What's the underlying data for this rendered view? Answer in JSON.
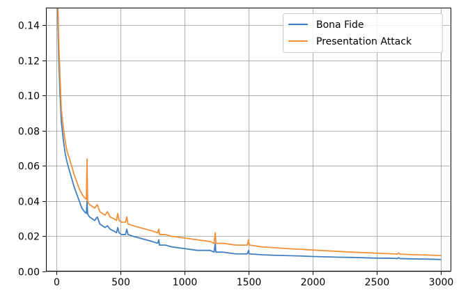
{
  "chart_data": {
    "type": "line",
    "title": "",
    "xlabel": "",
    "ylabel": "",
    "xlim": [
      -80,
      3080
    ],
    "ylim": [
      0.0,
      0.15
    ],
    "grid": true,
    "legend_position": "top-right",
    "x_ticks": [
      0,
      500,
      1000,
      1500,
      2000,
      2500,
      3000
    ],
    "x_tick_labels": [
      "0",
      "500",
      "1000",
      "1500",
      "2000",
      "2500",
      "3000"
    ],
    "y_ticks": [
      0.0,
      0.02,
      0.04,
      0.06,
      0.08,
      0.1,
      0.12,
      0.14
    ],
    "y_tick_labels": [
      "0.00",
      "0.02",
      "0.04",
      "0.06",
      "0.08",
      "0.10",
      "0.12",
      "0.14"
    ],
    "series": [
      {
        "name": "Bona Fide",
        "color": "#3f7fbf",
        "x": [
          0,
          10,
          20,
          30,
          40,
          55,
          70,
          85,
          100,
          120,
          140,
          160,
          180,
          200,
          220,
          235,
          240,
          245,
          250,
          260,
          280,
          300,
          320,
          340,
          360,
          380,
          400,
          420,
          450,
          470,
          480,
          490,
          510,
          540,
          550,
          560,
          600,
          650,
          700,
          750,
          790,
          800,
          805,
          810,
          850,
          900,
          1000,
          1100,
          1200,
          1230,
          1240,
          1245,
          1250,
          1260,
          1300,
          1400,
          1490,
          1500,
          1505,
          1510,
          1600,
          1700,
          1800,
          1900,
          2000,
          2100,
          2200,
          2300,
          2400,
          2500,
          2600,
          2660,
          2670,
          2680,
          2700,
          2800,
          2900,
          3000
        ],
        "y": [
          0.18,
          0.15,
          0.12,
          0.1,
          0.085,
          0.075,
          0.067,
          0.062,
          0.058,
          0.053,
          0.048,
          0.044,
          0.04,
          0.036,
          0.034,
          0.033,
          0.04,
          0.033,
          0.032,
          0.031,
          0.03,
          0.029,
          0.031,
          0.027,
          0.026,
          0.025,
          0.026,
          0.024,
          0.023,
          0.022,
          0.025,
          0.022,
          0.021,
          0.021,
          0.024,
          0.021,
          0.02,
          0.019,
          0.018,
          0.017,
          0.016,
          0.018,
          0.015,
          0.015,
          0.015,
          0.014,
          0.013,
          0.012,
          0.012,
          0.011,
          0.016,
          0.011,
          0.011,
          0.011,
          0.011,
          0.01,
          0.01,
          0.012,
          0.01,
          0.01,
          0.0095,
          0.0092,
          0.009,
          0.0088,
          0.0085,
          0.0083,
          0.0081,
          0.008,
          0.0078,
          0.0076,
          0.0075,
          0.0074,
          0.0078,
          0.0073,
          0.0073,
          0.0071,
          0.007,
          0.0068
        ]
      },
      {
        "name": "Presentation Attack",
        "color": "#f0913a",
        "x": [
          0,
          10,
          20,
          30,
          40,
          55,
          70,
          85,
          100,
          120,
          140,
          160,
          180,
          200,
          220,
          235,
          240,
          245,
          250,
          260,
          280,
          300,
          320,
          340,
          360,
          380,
          400,
          420,
          450,
          470,
          480,
          490,
          510,
          540,
          550,
          560,
          600,
          650,
          700,
          750,
          790,
          800,
          805,
          810,
          850,
          900,
          1000,
          1100,
          1200,
          1230,
          1240,
          1245,
          1250,
          1260,
          1300,
          1400,
          1490,
          1500,
          1505,
          1510,
          1600,
          1700,
          1800,
          1900,
          2000,
          2100,
          2200,
          2300,
          2400,
          2500,
          2600,
          2660,
          2670,
          2680,
          2700,
          2800,
          2900,
          3000
        ],
        "y": [
          0.19,
          0.16,
          0.13,
          0.11,
          0.092,
          0.082,
          0.074,
          0.068,
          0.065,
          0.06,
          0.055,
          0.051,
          0.047,
          0.044,
          0.042,
          0.041,
          0.064,
          0.04,
          0.039,
          0.038,
          0.037,
          0.036,
          0.038,
          0.034,
          0.033,
          0.032,
          0.034,
          0.031,
          0.03,
          0.029,
          0.033,
          0.029,
          0.028,
          0.028,
          0.031,
          0.027,
          0.026,
          0.025,
          0.024,
          0.023,
          0.022,
          0.024,
          0.021,
          0.021,
          0.021,
          0.02,
          0.019,
          0.018,
          0.017,
          0.016,
          0.022,
          0.016,
          0.016,
          0.016,
          0.016,
          0.015,
          0.015,
          0.018,
          0.015,
          0.015,
          0.014,
          0.0135,
          0.013,
          0.0126,
          0.0122,
          0.0118,
          0.0114,
          0.011,
          0.0107,
          0.0104,
          0.0101,
          0.0099,
          0.0105,
          0.0098,
          0.0098,
          0.0095,
          0.0093,
          0.009
        ]
      }
    ]
  }
}
